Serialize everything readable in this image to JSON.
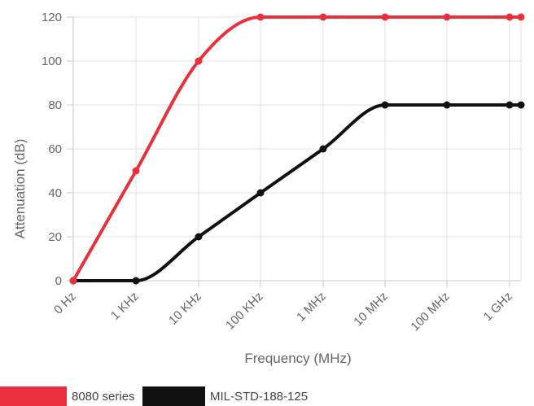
{
  "chart_data": {
    "type": "line",
    "categories": [
      "0 Hz",
      "1 KHz",
      "10 KHz",
      "100 KHz",
      "1 MHz",
      "10 MHz",
      "100 MHz",
      "1 GHz",
      ""
    ],
    "series": [
      {
        "name": "8080 series",
        "color": "#e8313d",
        "values": [
          0,
          50,
          100,
          120,
          120,
          120,
          120,
          120,
          120
        ]
      },
      {
        "name": "MIL-STD-188-125",
        "color": "#111111",
        "values": [
          0,
          0,
          20,
          40,
          60,
          80,
          80,
          80,
          80
        ]
      }
    ],
    "xlabel": "Frequency (MHz)",
    "ylabel": "Attenuation (dB)",
    "ylim": [
      0,
      120
    ],
    "yticks": [
      0,
      20,
      40,
      60,
      80,
      100,
      120
    ],
    "grid": true,
    "legend": "bottom-left"
  }
}
